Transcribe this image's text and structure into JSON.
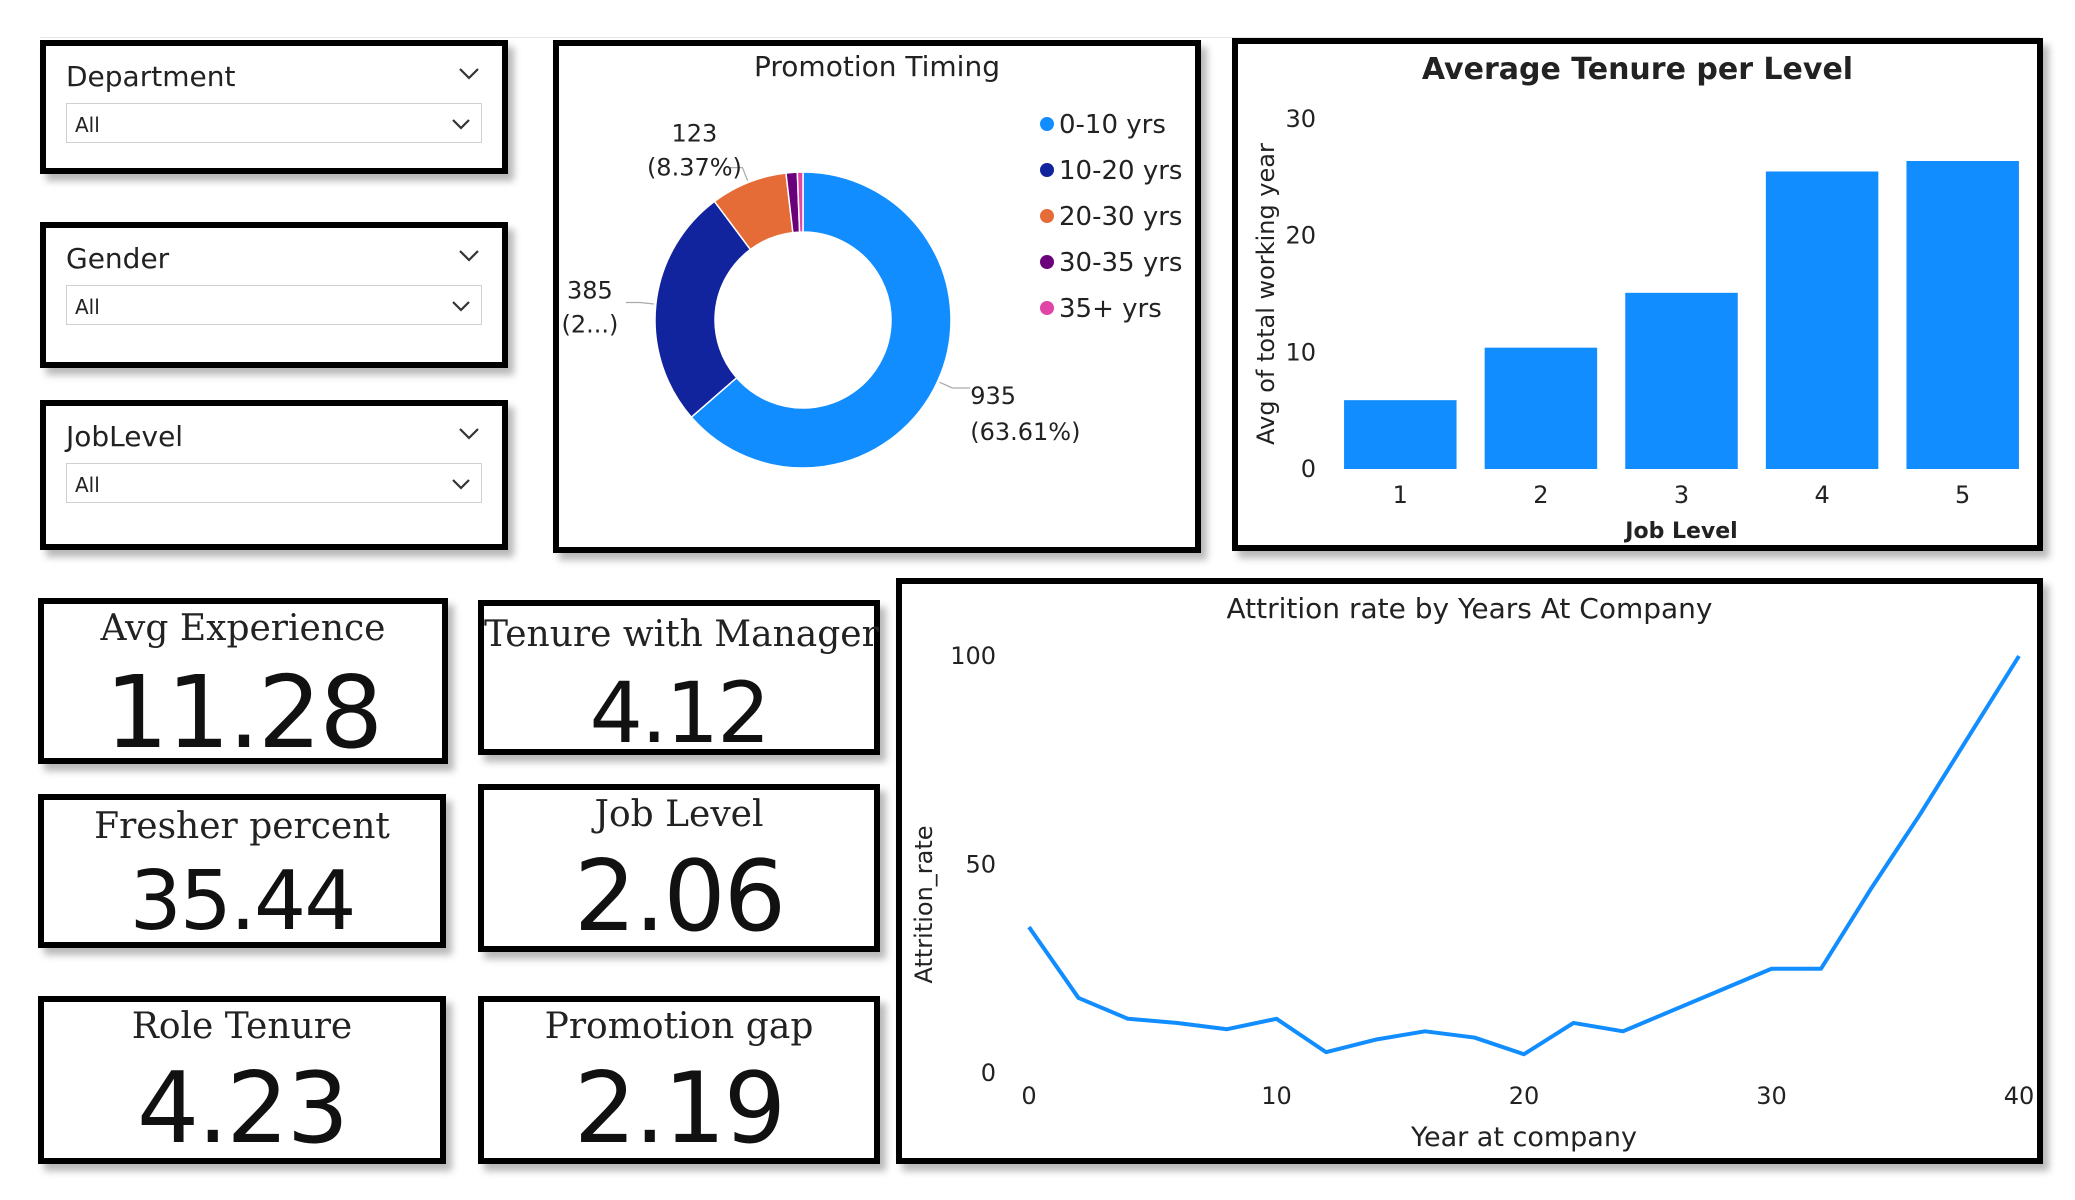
{
  "slicers": [
    {
      "title": "Department",
      "value": "All"
    },
    {
      "title": "Gender",
      "value": "All"
    },
    {
      "title": "JobLevel",
      "value": "All"
    }
  ],
  "cards": [
    {
      "label": "Avg Experience",
      "value": "11.28"
    },
    {
      "label": "Tenure with Manager",
      "value": "4.12"
    },
    {
      "label": "Fresher percent",
      "value": "35.44"
    },
    {
      "label": "Job Level",
      "value": "2.06"
    },
    {
      "label": "Role Tenure",
      "value": "4.23"
    },
    {
      "label": "Promotion gap",
      "value": "2.19"
    }
  ],
  "colors": {
    "blue": "#118DFF",
    "navy": "#12239E",
    "orange": "#E66C37",
    "purple": "#6B007B",
    "pink": "#E044A7"
  },
  "chart_data": [
    {
      "type": "pie",
      "title": "Promotion Timing",
      "categories": [
        "0-10 yrs",
        "10-20 yrs",
        "20-30 yrs",
        "30-35 yrs",
        "35+ yrs"
      ],
      "values": [
        935,
        385,
        123,
        18,
        9
      ],
      "data_labels": [
        {
          "value": "935",
          "pct": "(63.61%)"
        },
        {
          "value": "385",
          "pct": "(2...)"
        },
        {
          "value": "123",
          "pct": "(8.37%)"
        }
      ],
      "legend_position": "right",
      "colors": [
        "#118DFF",
        "#12239E",
        "#E66C37",
        "#6B007B",
        "#E044A7"
      ]
    },
    {
      "type": "bar",
      "title": "Average Tenure per Level",
      "categories": [
        "1",
        "2",
        "3",
        "4",
        "5"
      ],
      "values": [
        5.9,
        10.4,
        15.1,
        25.5,
        26.4
      ],
      "xlabel": "Job Level",
      "ylabel": "Avg of total working year",
      "ylim": [
        0,
        30
      ],
      "yticks": [
        "0",
        "10",
        "20",
        "30"
      ],
      "color": "#118DFF"
    },
    {
      "type": "line",
      "title": "Attrition rate by Years At Company",
      "x": [
        0,
        2,
        4,
        6,
        8,
        10,
        12,
        14,
        16,
        18,
        20,
        22,
        24,
        26,
        28,
        30,
        32,
        34,
        36,
        38,
        40
      ],
      "y": [
        35,
        18,
        13,
        12,
        10.5,
        13,
        5,
        8,
        10,
        8.5,
        4.5,
        12,
        10,
        15,
        20,
        25,
        25,
        44,
        62,
        81,
        100
      ],
      "xlabel": "Year at company",
      "ylabel": "Attrition_rate",
      "xticks": [
        "0",
        "10",
        "20",
        "30",
        "40"
      ],
      "yticks": [
        "0",
        "50",
        "100"
      ],
      "xlim": [
        0,
        40
      ],
      "ylim": [
        0,
        100
      ],
      "color": "#118DFF"
    }
  ]
}
